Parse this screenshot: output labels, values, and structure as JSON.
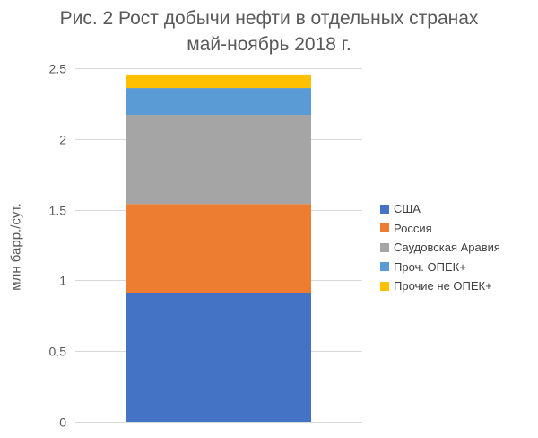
{
  "chart_data": {
    "type": "bar",
    "stacked": true,
    "title_line1": "Рис. 2 Рост добычи нефти в отдельных странах",
    "title_line2": "май-ноябрь 2018 г.",
    "xlabel": "",
    "ylabel": "млн барр./сут.",
    "ylim": [
      0,
      2.5
    ],
    "yticks": [
      "0",
      "0.5",
      "1",
      "1.5",
      "2",
      "2.5"
    ],
    "ytick_values": [
      0,
      0.5,
      1,
      1.5,
      2,
      2.5
    ],
    "grid": true,
    "legend_position": "right",
    "categories": [
      ""
    ],
    "series": [
      {
        "name": "США",
        "color": "#4472C4",
        "values": [
          0.91
        ]
      },
      {
        "name": "Россия",
        "color": "#ED7D31",
        "values": [
          0.63
        ]
      },
      {
        "name": "Саудовская Аравия",
        "color": "#A5A5A5",
        "values": [
          0.63
        ]
      },
      {
        "name": "Проч. ОПЕК+",
        "color": "#5B9BD5",
        "values": [
          0.19
        ]
      },
      {
        "name": "Прочие не ОПЕК+",
        "color": "#FFC000",
        "values": [
          0.09
        ]
      }
    ]
  }
}
